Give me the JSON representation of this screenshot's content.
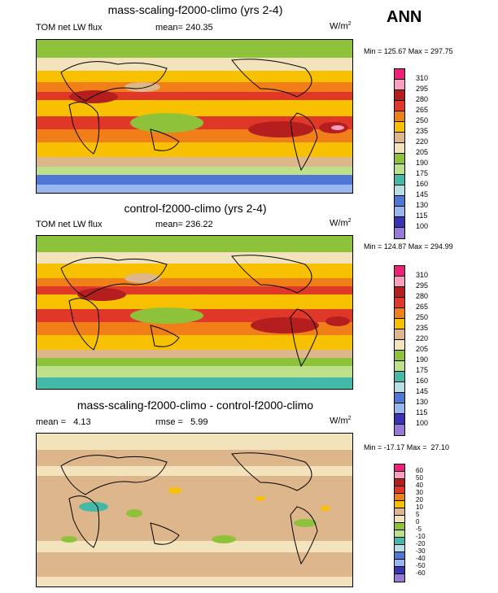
{
  "season": "ANN",
  "panels": [
    {
      "title": "mass-scaling-f2000-climo (yrs 2-4)",
      "left_label": "TOM net LW flux",
      "center_label": "mean= 240.35",
      "units_base": "W/m",
      "units_exp": "2",
      "minmax": "Min = 125.67 Max = 297.75",
      "levels": [
        "310",
        "295",
        "280",
        "265",
        "250",
        "235",
        "220",
        "205",
        "190",
        "175",
        "160",
        "145",
        "130",
        "115",
        "100"
      ],
      "colors": [
        "#f0207a",
        "#f7a0c0",
        "#b41e1e",
        "#e03828",
        "#f07f1a",
        "#f7c000",
        "#ddb68c",
        "#f2e3bc",
        "#8fc23b",
        "#bfe08a",
        "#44b9a8",
        "#b7dfe4",
        "#4f78d6",
        "#98b7ef",
        "#3a33b8",
        "#9779d8"
      ]
    },
    {
      "title": "control-f2000-climo (yrs 2-4)",
      "left_label": "TOM net LW flux",
      "center_label": "mean= 236.22",
      "units_base": "W/m",
      "units_exp": "2",
      "minmax": "Min = 124.87 Max = 294.99",
      "levels": [
        "310",
        "295",
        "280",
        "265",
        "250",
        "235",
        "220",
        "205",
        "190",
        "175",
        "160",
        "145",
        "130",
        "115",
        "100"
      ],
      "colors": [
        "#f0207a",
        "#f7a0c0",
        "#b41e1e",
        "#e03828",
        "#f07f1a",
        "#f7c000",
        "#ddb68c",
        "#f2e3bc",
        "#8fc23b",
        "#bfe08a",
        "#44b9a8",
        "#b7dfe4",
        "#4f78d6",
        "#98b7ef",
        "#3a33b8",
        "#9779d8"
      ]
    },
    {
      "title": "mass-scaling-f2000-climo - control-f2000-climo",
      "left_label": "mean =   4.13",
      "center_label": "rmse =   5.99",
      "units_base": "W/m",
      "units_exp": "2",
      "minmax": "Min = -17.17 Max =  27.10",
      "levels": [
        "60",
        "50",
        "40",
        "30",
        "20",
        "10",
        "5",
        "0",
        "-5",
        "-10",
        "-20",
        "-30",
        "-40",
        "-50",
        "-60"
      ],
      "colors": [
        "#f0207a",
        "#f7a0c0",
        "#b41e1e",
        "#e03828",
        "#f07f1a",
        "#f7c000",
        "#ddb68c",
        "#f2e3bc",
        "#8fc23b",
        "#bfe08a",
        "#44b9a8",
        "#b7dfe4",
        "#4f78d6",
        "#98b7ef",
        "#3a33b8",
        "#9779d8"
      ]
    }
  ]
}
